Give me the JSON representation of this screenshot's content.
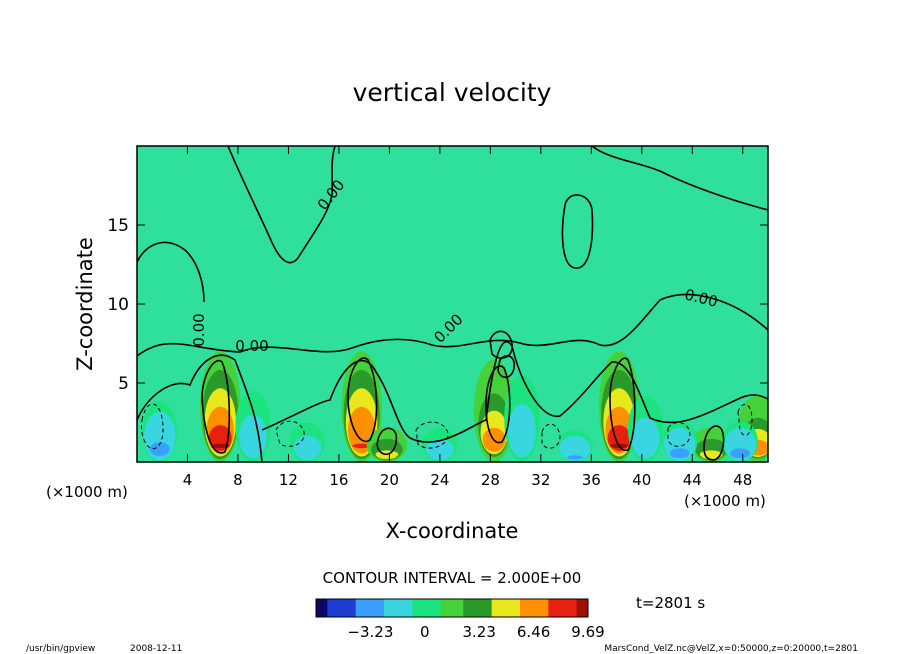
{
  "chart_data": {
    "type": "heatmap",
    "title": "vertical velocity",
    "xlabel": "X-coordinate",
    "ylabel": "Z-coordinate",
    "x_unit": "(×1000 m)",
    "xlim": [
      0,
      50
    ],
    "ylim": [
      0,
      20
    ],
    "x_ticks": [
      "4",
      "8",
      "12",
      "16",
      "20",
      "24",
      "28",
      "32",
      "36",
      "40",
      "44",
      "48"
    ],
    "x_tick_values": [
      4,
      8,
      12,
      16,
      20,
      24,
      28,
      32,
      36,
      40,
      44,
      48
    ],
    "y_ticks": [
      "5",
      "10",
      "15"
    ],
    "y_tick_values": [
      5,
      10,
      15
    ],
    "contour_interval_label": "CONTOUR INTERVAL = 2.000E+00",
    "contour_labels": [
      "0.00",
      "0.00",
      "0.00",
      "0.00",
      "0.00"
    ],
    "colorbar_ticks": [
      "−3.23",
      "0",
      "3.23",
      "6.46",
      "9.69"
    ],
    "colorbar_tick_values": [
      -3.23,
      0,
      3.23,
      6.46,
      9.69
    ],
    "colorbar_range": [
      -6.46,
      9.69
    ],
    "colormap": [
      "#0a0a60",
      "#1e3cd2",
      "#3aa0ff",
      "#39d6e0",
      "#1be37e",
      "#44d13a",
      "#2a9a2a",
      "#e8e81c",
      "#ff9000",
      "#e82010",
      "#a0100a"
    ],
    "background_color": "#2fe09c",
    "grid": false,
    "time_label": "t=2801 s",
    "features": [
      {
        "kind": "updraft",
        "x": 6.6,
        "z_max": 7.0,
        "peak": 9.0
      },
      {
        "kind": "updraft",
        "x": 17.8,
        "z_max": 7.0,
        "peak": 8.5
      },
      {
        "kind": "updraft",
        "x": 28.3,
        "z_max": 6.5,
        "peak": 7.0
      },
      {
        "kind": "updraft",
        "x": 38.2,
        "z_max": 7.0,
        "peak": 9.5
      },
      {
        "kind": "updraft",
        "x": 19.8,
        "z_max": 2.2,
        "peak": 5.0
      },
      {
        "kind": "updraft",
        "x": 45.5,
        "z_max": 2.2,
        "peak": 5.0
      },
      {
        "kind": "updraft",
        "x": 49.2,
        "z_max": 4.2,
        "peak": 7.0
      },
      {
        "kind": "downdraft",
        "x": 1.8,
        "z_max": 3.8,
        "peak": -3.5
      },
      {
        "kind": "downdraft",
        "x": 9.2,
        "z_max": 4.5,
        "peak": -1.8
      },
      {
        "kind": "downdraft",
        "x": 13.5,
        "z_max": 2.5,
        "peak": -1.8
      },
      {
        "kind": "downdraft",
        "x": 24.0,
        "z_max": 2.2,
        "peak": -2.2
      },
      {
        "kind": "downdraft",
        "x": 30.5,
        "z_max": 5.5,
        "peak": -1.8
      },
      {
        "kind": "downdraft",
        "x": 34.7,
        "z_max": 2.0,
        "peak": -2.8
      },
      {
        "kind": "downdraft",
        "x": 40.3,
        "z_max": 4.2,
        "peak": -2.2
      },
      {
        "kind": "downdraft",
        "x": 43.0,
        "z_max": 2.6,
        "peak": -3.0
      },
      {
        "kind": "downdraft",
        "x": 47.8,
        "z_max": 2.6,
        "peak": -3.2
      }
    ]
  },
  "footer": {
    "program": "/usr/bin/gpview",
    "date": "2008-12-11",
    "source": "MarsCond_VelZ.nc@VelZ,x=0:50000,z=0:20000,t=2801"
  }
}
